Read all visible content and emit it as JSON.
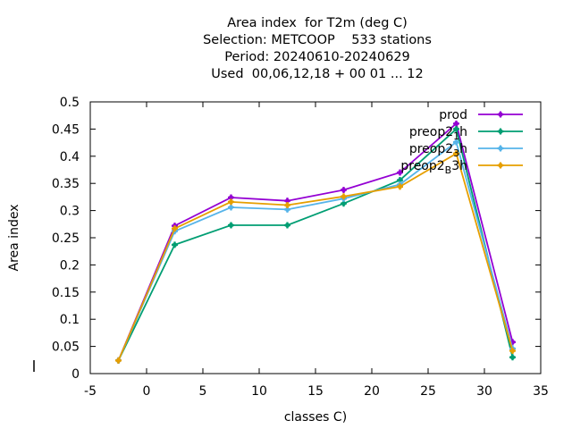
{
  "chart_data": {
    "type": "line",
    "title_lines": [
      "Area index  for T2m (deg C)",
      "Selection: METCOOP    533 stations",
      "Period: 20240610-20240629",
      "Used  00,06,12,18 + 00 01 ... 12"
    ],
    "xlabel": "classes C)",
    "ylabel": "Area index",
    "xlim": [
      -5,
      35
    ],
    "ylim": [
      0,
      0.5
    ],
    "xticks": [
      "-5",
      "0",
      "5",
      "10",
      "15",
      "20",
      "25",
      "30",
      "35"
    ],
    "yticks": [
      "0",
      "0.05",
      "0.1",
      "0.15",
      "0.2",
      "0.25",
      "0.3",
      "0.35",
      "0.4",
      "0.45",
      "0.5"
    ],
    "legend_position": "top-right",
    "x": [
      -2.5,
      2.5,
      7.5,
      12.5,
      17.5,
      22.5,
      27.5,
      32.5
    ],
    "series": [
      {
        "name": "prod",
        "color": "#9400d3",
        "values": [
          0.024,
          0.272,
          0.324,
          0.318,
          0.338,
          0.37,
          0.46,
          0.058
        ]
      },
      {
        "name": "preop2_1h",
        "color": "#009e73",
        "values": [
          0.024,
          0.237,
          0.273,
          0.273,
          0.313,
          0.356,
          0.45,
          0.03
        ]
      },
      {
        "name": "preop2_3h",
        "color": "#56b4e9",
        "values": [
          0.024,
          0.262,
          0.306,
          0.302,
          0.322,
          0.348,
          0.426,
          0.046
        ]
      },
      {
        "name": "preop2_B3h",
        "color": "#e69f00",
        "values": [
          0.024,
          0.267,
          0.316,
          0.31,
          0.326,
          0.344,
          0.405,
          0.042
        ]
      }
    ],
    "legend_display": [
      {
        "pre": "prod",
        "sub": "",
        "post": ""
      },
      {
        "pre": "preop2",
        "sub": "1",
        "post": "h"
      },
      {
        "pre": "preop2",
        "sub": "3",
        "post": "h"
      },
      {
        "pre": "preop2",
        "sub": "B",
        "post": "3h"
      }
    ]
  }
}
